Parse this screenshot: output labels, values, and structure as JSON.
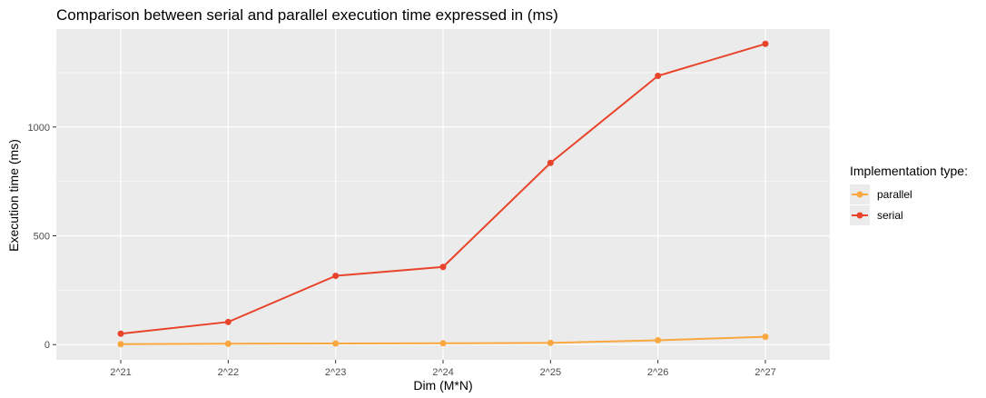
{
  "chart_data": {
    "type": "line",
    "title": "Comparison between serial and parallel execution time expressed in (ms)",
    "xlabel": "Dim (M*N)",
    "ylabel": "Execution time (ms)",
    "categories": [
      "2^21",
      "2^22",
      "2^23",
      "2^24",
      "2^25",
      "2^26",
      "2^27"
    ],
    "ylim": [
      -70,
      1450
    ],
    "yticks": [
      0,
      500,
      1000
    ],
    "grid": true,
    "legend": {
      "title": "Implementation type:",
      "placement": "right",
      "entries": [
        "parallel",
        "serial"
      ]
    },
    "series": [
      {
        "name": "parallel",
        "color": "#f9a73e",
        "values": [
          2,
          4,
          5,
          6,
          8,
          20,
          36
        ]
      },
      {
        "name": "serial",
        "color": "#e8442b",
        "values": [
          50,
          104,
          316,
          357,
          835,
          1235,
          1382
        ]
      }
    ],
    "colors": {
      "panel": "#ebebeb",
      "grid": "#ffffff"
    }
  }
}
